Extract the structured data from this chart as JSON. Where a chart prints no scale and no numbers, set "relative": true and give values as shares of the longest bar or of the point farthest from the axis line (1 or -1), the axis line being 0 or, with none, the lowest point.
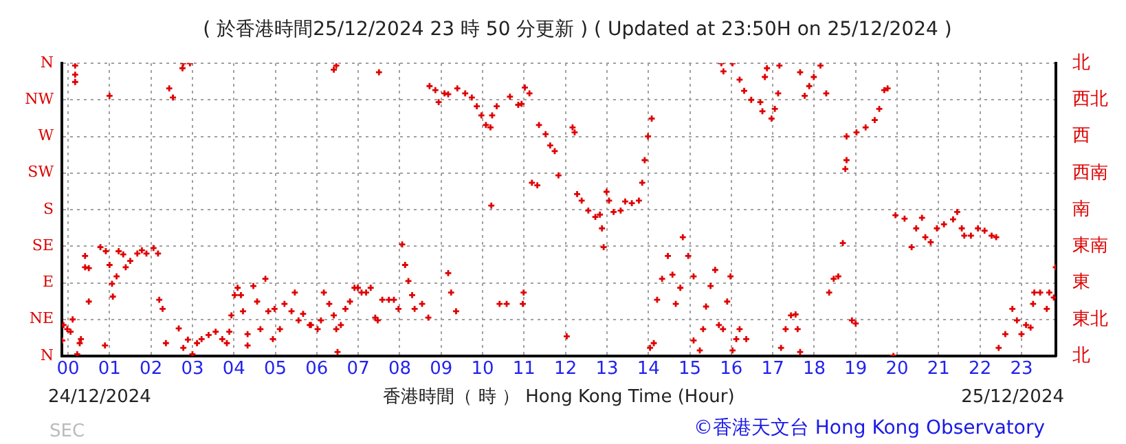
{
  "chart_data": {
    "type": "scatter",
    "title": "( 於香港時間25/12/2024 23 時 50 分更新 ) ( Updated at 23:50H on 25/12/2024 )",
    "xlabel": "香港時間（ 時 ） Hong Kong Time (Hour)",
    "annotations": [
      "24/12/2024",
      "25/12/2024",
      "©香港天文台 Hong Kong Observatory",
      "SEC"
    ],
    "relative": true,
    "series": [
      {
        "color": "#e00000",
        "x": [
          -0.14,
          -0.11,
          -0.02,
          0.06,
          0.11,
          0.17,
          0.17,
          0.17,
          0.22,
          0.28,
          0.31,
          0.41,
          0.41,
          0.5,
          0.5,
          0.78,
          0.91,
          0.89,
          1.0,
          1.0,
          1.06,
          1.08,
          1.17,
          1.22,
          1.33,
          1.39,
          1.5,
          1.67,
          1.78,
          1.89,
          2.06,
          2.17,
          2.2,
          2.28,
          2.36,
          2.44,
          2.53,
          2.67,
          2.76,
          2.78,
          2.94,
          2.78,
          2.89,
          3.0,
          3.11,
          3.22,
          3.39,
          3.56,
          3.72,
          3.83,
          3.89,
          3.94,
          4.02,
          4.09,
          4.17,
          4.22,
          4.33,
          4.33,
          4.47,
          4.56,
          4.64,
          4.76,
          4.83,
          4.94,
          4.98,
          5.11,
          5.22,
          5.39,
          5.47,
          5.56,
          5.67,
          5.83,
          5.86,
          6.02,
          6.1,
          6.17,
          6.3,
          6.41,
          6.47,
          6.5,
          6.41,
          6.47,
          6.58,
          6.69,
          6.8,
          6.91,
          6.99,
          7.08,
          7.19,
          7.3,
          7.41,
          7.47,
          7.5,
          7.58,
          7.74,
          7.86,
          7.97,
          8.06,
          8.13,
          8.21,
          8.3,
          8.36,
          8.54,
          8.69,
          8.72,
          8.86,
          8.94,
          9.08,
          9.17,
          9.17,
          9.24,
          9.36,
          9.39,
          9.58,
          9.74,
          9.86,
          9.97,
          10.08,
          10.19,
          10.21,
          10.23,
          10.34,
          10.41,
          10.58,
          10.66,
          10.86,
          10.94,
          10.99,
          10.97,
          11.02,
          11.13,
          11.19,
          11.32,
          11.36,
          11.52,
          11.63,
          11.74,
          11.83,
          12.03,
          12.17,
          12.22,
          12.28,
          12.39,
          12.55,
          12.72,
          12.83,
          12.88,
          12.92,
          12.99,
          13.05,
          13.16,
          13.33,
          13.44,
          13.6,
          13.77,
          13.85,
          13.91,
          13.99,
          14.08,
          14.04,
          14.13,
          14.21,
          14.33,
          14.47,
          14.58,
          14.66,
          14.77,
          14.83,
          14.96,
          15.09,
          15.09,
          15.24,
          15.32,
          15.39,
          15.5,
          15.61,
          15.7,
          15.8,
          15.76,
          15.81,
          15.9,
          15.98,
          16.03,
          16.12,
          16.2,
          16.36,
          16.03,
          16.2,
          16.31,
          16.48,
          16.7,
          16.75,
          16.81,
          16.86,
          16.97,
          17.05,
          17.13,
          17.16,
          17.2,
          17.31,
          17.44,
          17.55,
          17.6,
          17.66,
          17.66,
          17.77,
          17.88,
          17.99,
          18.15,
          18.29,
          18.36,
          18.47,
          18.58,
          18.69,
          18.78,
          18.78,
          18.75,
          18.91,
          19.0,
          19.02,
          19.24,
          19.46,
          19.57,
          19.69,
          19.77,
          19.91,
          19.96,
          20.18,
          20.35,
          20.46,
          20.6,
          20.68,
          20.81,
          20.96,
          21.13,
          21.35,
          21.45,
          21.56,
          21.62,
          21.78,
          21.95,
          22.11,
          22.28,
          22.39,
          22.45,
          22.61,
          22.78,
          22.89,
          23.0,
          23.11,
          23.22,
          23.31,
          23.28,
          23.45,
          23.61,
          23.67,
          23.78,
          23.83
        ],
        "values": [
          0.053,
          0.106,
          0.092,
          0.083,
          0.125,
          0.992,
          0.961,
          0.936,
          0.006,
          0.044,
          0.058,
          0.342,
          0.303,
          0.3,
          0.186,
          0.372,
          0.358,
          0.036,
          0.889,
          0.311,
          0.247,
          0.203,
          0.272,
          0.358,
          0.347,
          0.303,
          0.325,
          0.35,
          0.361,
          0.35,
          0.369,
          0.35,
          0.192,
          0.161,
          0.044,
          0.914,
          0.883,
          0.094,
          0.983,
          1,
          1,
          0.028,
          0.056,
          0.006,
          0.044,
          0.058,
          0.072,
          0.083,
          0.058,
          0.044,
          0.083,
          0.139,
          0.208,
          0.233,
          0.208,
          0.153,
          0.075,
          0.036,
          0.239,
          0.186,
          0.092,
          0.264,
          0.153,
          0.058,
          0.161,
          0.092,
          0.178,
          0.153,
          0.217,
          0.122,
          0.144,
          0.106,
          0.106,
          0.092,
          0.122,
          0.217,
          0.178,
          0.139,
          0.092,
          0.014,
          0.978,
          0.992,
          0.106,
          0.161,
          0.186,
          0.233,
          0.233,
          0.217,
          0.217,
          0.233,
          0.131,
          0.122,
          0.969,
          0.192,
          0.192,
          0.192,
          0.161,
          0.381,
          0.311,
          0.256,
          0.208,
          0.161,
          0.178,
          0.131,
          0.922,
          0.908,
          0.867,
          0.897,
          0.894,
          0.283,
          0.217,
          0.153,
          0.914,
          0.897,
          0.883,
          0.853,
          0.822,
          0.789,
          0.781,
          0.514,
          0.822,
          0.853,
          0.178,
          0.178,
          0.886,
          0.858,
          0.861,
          0.217,
          0.178,
          0.917,
          0.897,
          0.592,
          0.583,
          0.789,
          0.758,
          0.719,
          0.7,
          0.617,
          0.067,
          0.781,
          0.764,
          0.553,
          0.531,
          0.497,
          0.475,
          0.483,
          0.436,
          0.372,
          0.561,
          0.531,
          0.492,
          0.497,
          0.528,
          0.522,
          0.531,
          0.592,
          0.669,
          0.75,
          0.811,
          0.028,
          0.044,
          0.192,
          0.264,
          0.342,
          0.278,
          0.178,
          0.233,
          0.406,
          0.342,
          0.272,
          0.053,
          0.019,
          0.092,
          0.169,
          0.239,
          0.294,
          0.106,
          0.092,
          1,
          0.972,
          0.186,
          0.272,
          0.019,
          0.058,
          0.092,
          0.058,
          1,
          0.944,
          0.906,
          0.875,
          0.867,
          0.836,
          0.953,
          0.983,
          0.811,
          0.844,
          0.897,
          0.992,
          0.028,
          0.092,
          0.139,
          0.142,
          0.092,
          0.014,
          0.969,
          0.889,
          0.922,
          0.953,
          0.992,
          0.897,
          0.217,
          0.264,
          0.272,
          0.386,
          0.75,
          0.669,
          0.639,
          0.122,
          0.111,
          0.764,
          0.781,
          0.806,
          0.844,
          0.908,
          0.914,
          0,
          0.481,
          0.469,
          0.372,
          0.436,
          0.472,
          0.406,
          0.389,
          0.436,
          0.45,
          0.467,
          0.492,
          0.436,
          0.411,
          0.411,
          0.436,
          0.428,
          0.411,
          0.406,
          0.028,
          0.075,
          0.161,
          0.122,
          0.075,
          0.106,
          0.097,
          0.217,
          0.178,
          0.217,
          0.161,
          0.217,
          0.2,
          0.303
        ]
      }
    ],
    "xlim": [
      -0.15,
      23.83
    ],
    "xticks": [
      {
        "value": 0,
        "label": "00"
      },
      {
        "value": 1,
        "label": "01"
      },
      {
        "value": 2,
        "label": "02"
      },
      {
        "value": 3,
        "label": "03"
      },
      {
        "value": 4,
        "label": "04"
      },
      {
        "value": 5,
        "label": "05"
      },
      {
        "value": 6,
        "label": "06"
      },
      {
        "value": 7,
        "label": "07"
      },
      {
        "value": 8,
        "label": "08"
      },
      {
        "value": 9,
        "label": "09"
      },
      10,
      11,
      12,
      13,
      14,
      15,
      16,
      17,
      18,
      19,
      20,
      21,
      22,
      23
    ],
    "y_categories": [
      "N",
      "NW",
      "W",
      "SW",
      "S",
      "SE",
      "E",
      "NE",
      "N"
    ],
    "y2_categories": [
      "北",
      "西北",
      "西",
      "西南",
      "南",
      "東南",
      "東",
      "東北",
      "北"
    ],
    "grid": true,
    "legend": false,
    "marker": "cross"
  }
}
